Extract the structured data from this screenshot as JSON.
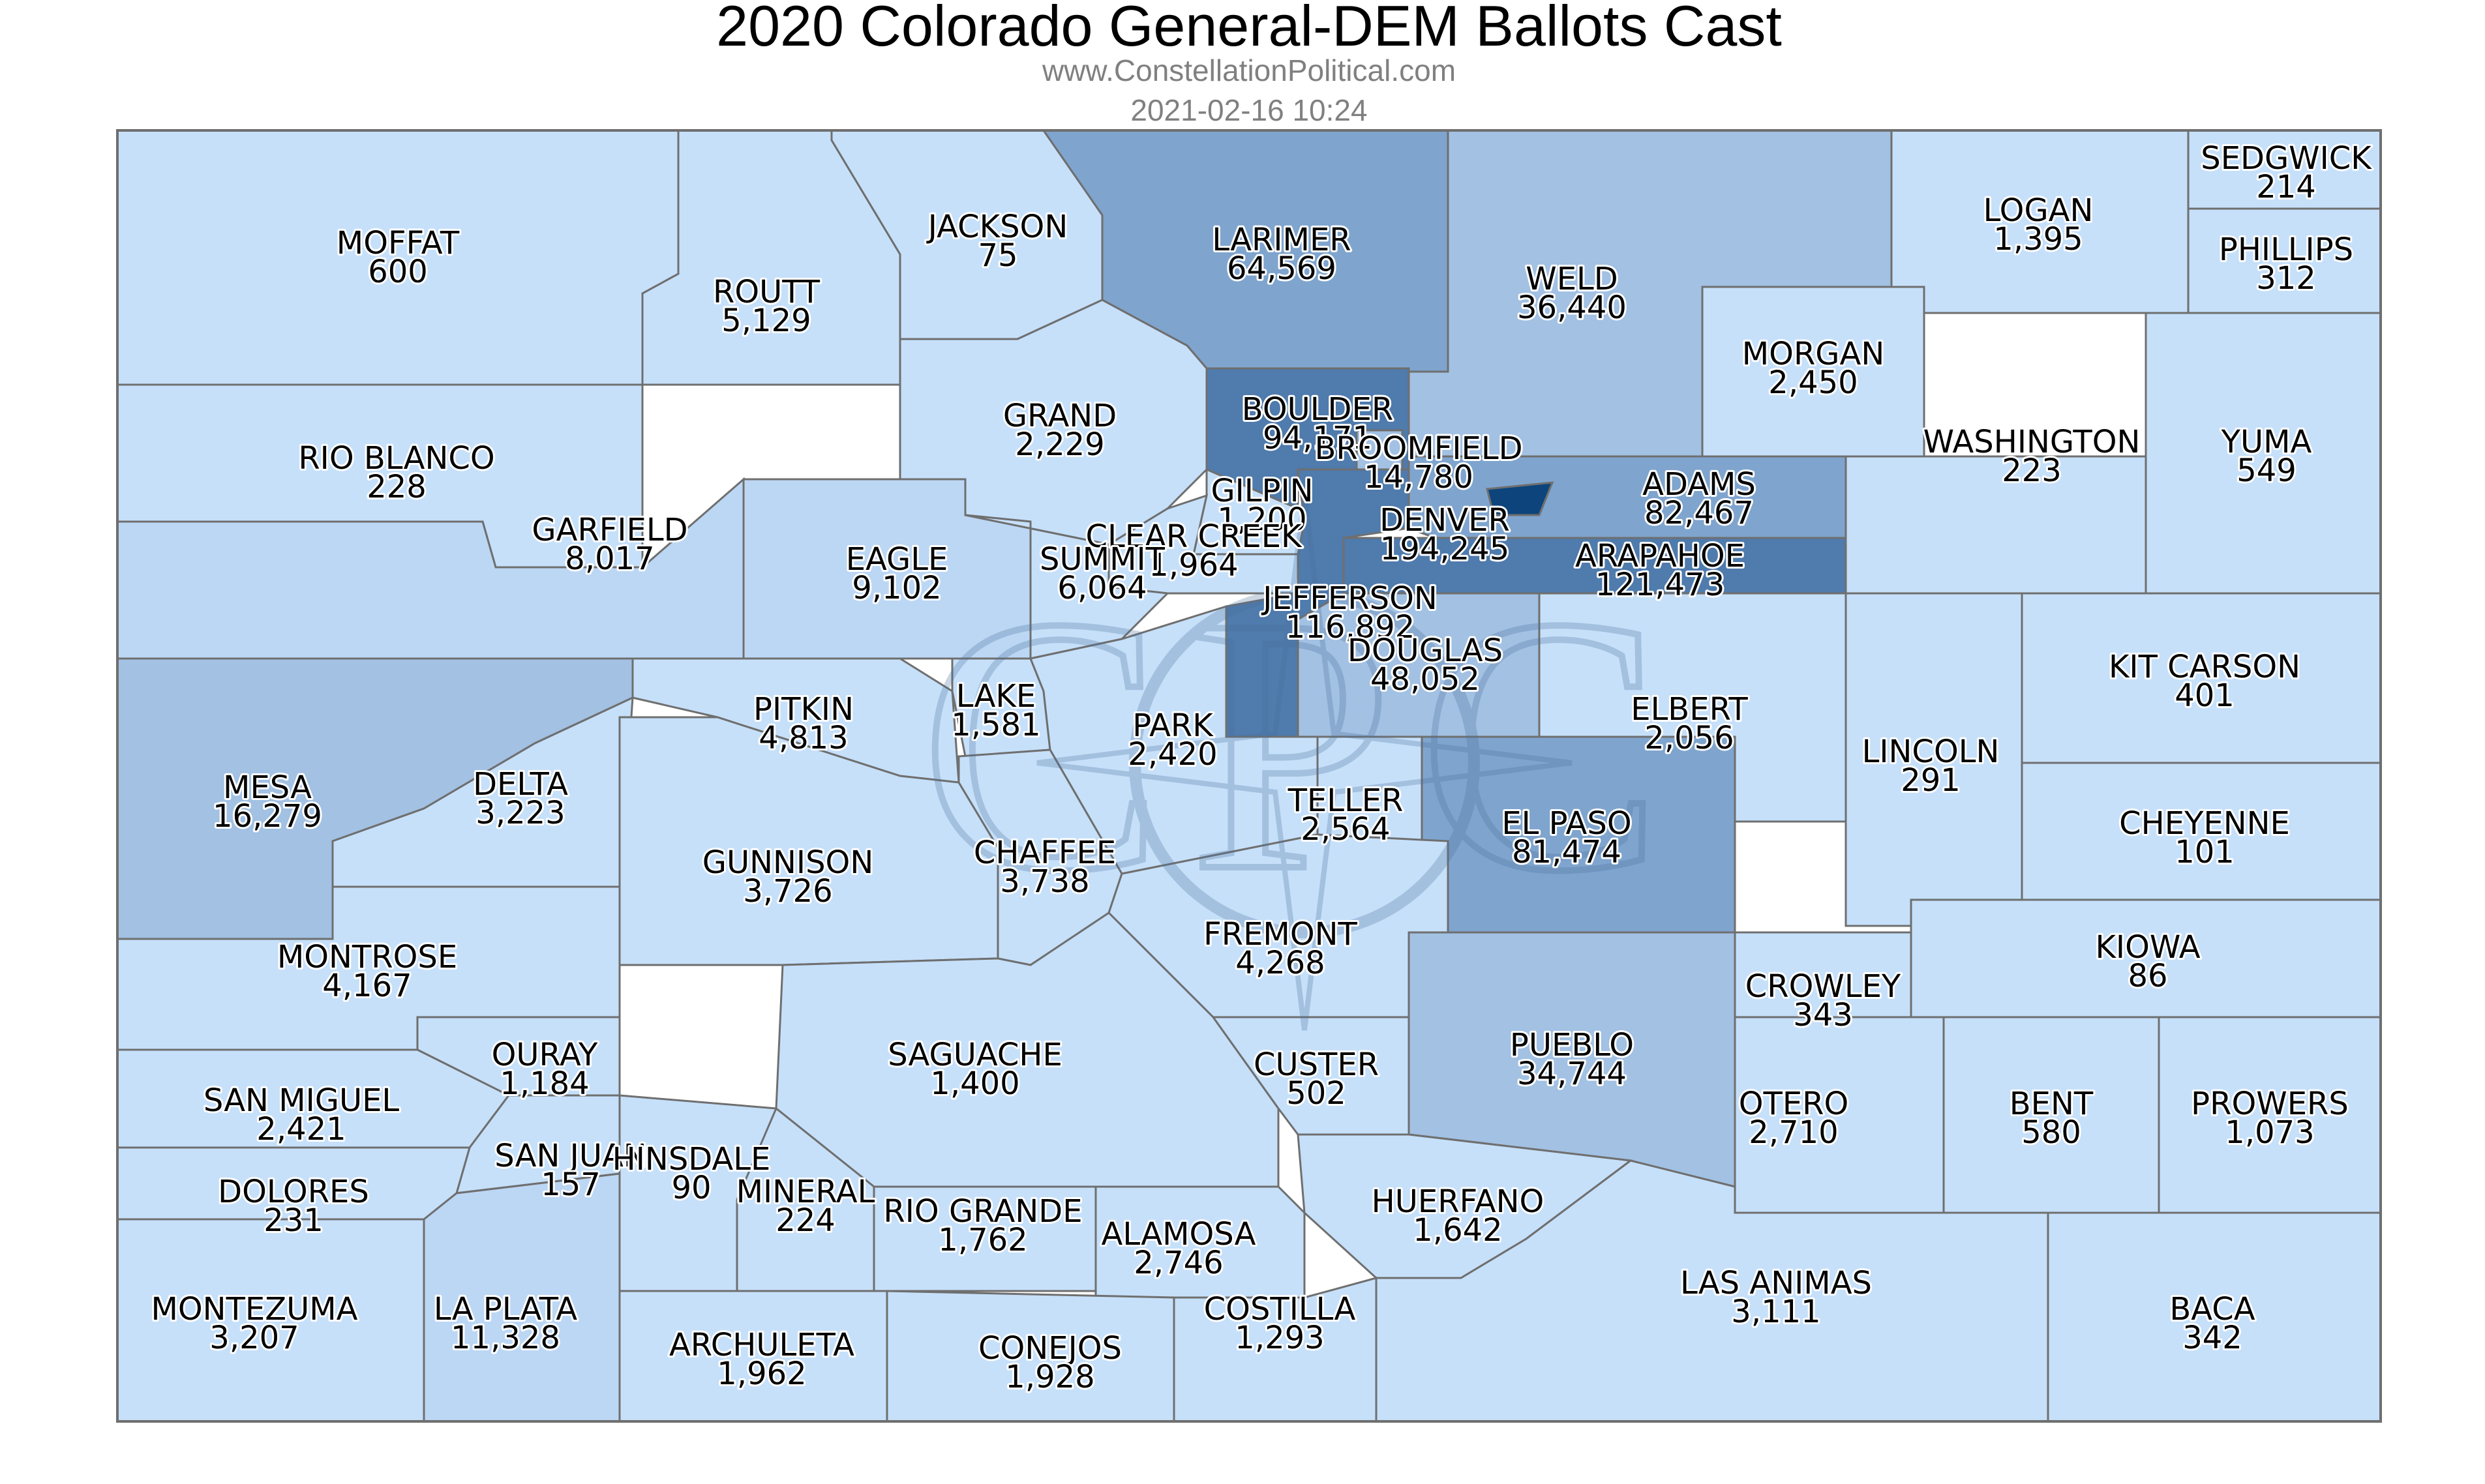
{
  "title": "2020 Colorado General-DEM Ballots Cast",
  "subtitle": "www.ConstellationPolitical.com",
  "timestamp": "2021-02-16 10:24",
  "colors": {
    "tier1": "#c6e0fa",
    "tier2": "#bcd7f4",
    "tier3": "#a2c1e3",
    "tier4": "#7fa5ce",
    "tier5": "#4f7bad",
    "tier6": "#0d447c",
    "border": "#6f6f6f"
  },
  "watermark_letters": "CPC",
  "counties": [
    {
      "name": "MOFFAT",
      "value": "600",
      "tier": 1
    },
    {
      "name": "ROUTT",
      "value": "5,129",
      "tier": 1
    },
    {
      "name": "JACKSON",
      "value": "75",
      "tier": 1
    },
    {
      "name": "LARIMER",
      "value": "64,569",
      "tier": 4
    },
    {
      "name": "WELD",
      "value": "36,440",
      "tier": 3
    },
    {
      "name": "LOGAN",
      "value": "1,395",
      "tier": 1
    },
    {
      "name": "SEDGWICK",
      "value": "214",
      "tier": 1
    },
    {
      "name": "PHILLIPS",
      "value": "312",
      "tier": 1
    },
    {
      "name": "MORGAN",
      "value": "2,450",
      "tier": 1
    },
    {
      "name": "RIO BLANCO",
      "value": "228",
      "tier": 1
    },
    {
      "name": "GARFIELD",
      "value": "8,017",
      "tier": 2
    },
    {
      "name": "GRAND",
      "value": "2,229",
      "tier": 1
    },
    {
      "name": "BOULDER",
      "value": "94,171",
      "tier": 5
    },
    {
      "name": "BROOMFIELD",
      "value": "14,780",
      "tier": 3
    },
    {
      "name": "WASHINGTON",
      "value": "223",
      "tier": 1
    },
    {
      "name": "YUMA",
      "value": "549",
      "tier": 1
    },
    {
      "name": "GILPIN",
      "value": "1,200",
      "tier": 1
    },
    {
      "name": "CLEAR CREEK",
      "value": "1,964",
      "tier": 1
    },
    {
      "name": "ADAMS",
      "value": "82,467",
      "tier": 4
    },
    {
      "name": "DENVER",
      "value": "194,245",
      "tier": 6
    },
    {
      "name": "ARAPAHOE",
      "value": "121,473",
      "tier": 5
    },
    {
      "name": "EAGLE",
      "value": "9,102",
      "tier": 2
    },
    {
      "name": "SUMMIT",
      "value": "6,064",
      "tier": 1
    },
    {
      "name": "JEFFERSON",
      "value": "116,892",
      "tier": 5
    },
    {
      "name": "DOUGLAS",
      "value": "48,052",
      "tier": 3
    },
    {
      "name": "KIT CARSON",
      "value": "401",
      "tier": 1
    },
    {
      "name": "PITKIN",
      "value": "4,813",
      "tier": 1
    },
    {
      "name": "LAKE",
      "value": "1,581",
      "tier": 1
    },
    {
      "name": "PARK",
      "value": "2,420",
      "tier": 1
    },
    {
      "name": "ELBERT",
      "value": "2,056",
      "tier": 1
    },
    {
      "name": "LINCOLN",
      "value": "291",
      "tier": 1
    },
    {
      "name": "MESA",
      "value": "16,279",
      "tier": 3
    },
    {
      "name": "DELTA",
      "value": "3,223",
      "tier": 1
    },
    {
      "name": "CHEYENNE",
      "value": "101",
      "tier": 1
    },
    {
      "name": "TELLER",
      "value": "2,564",
      "tier": 1
    },
    {
      "name": "EL PASO",
      "value": "81,474",
      "tier": 4
    },
    {
      "name": "GUNNISON",
      "value": "3,726",
      "tier": 1
    },
    {
      "name": "CHAFFEE",
      "value": "3,738",
      "tier": 1
    },
    {
      "name": "MONTROSE",
      "value": "4,167",
      "tier": 1
    },
    {
      "name": "FREMONT",
      "value": "4,268",
      "tier": 1
    },
    {
      "name": "KIOWA",
      "value": "86",
      "tier": 1
    },
    {
      "name": "CROWLEY",
      "value": "343",
      "tier": 1
    },
    {
      "name": "OURAY",
      "value": "1,184",
      "tier": 1
    },
    {
      "name": "SAGUACHE",
      "value": "1,400",
      "tier": 1
    },
    {
      "name": "CUSTER",
      "value": "502",
      "tier": 1
    },
    {
      "name": "PUEBLO",
      "value": "34,744",
      "tier": 3
    },
    {
      "name": "SAN MIGUEL",
      "value": "2,421",
      "tier": 1
    },
    {
      "name": "OTERO",
      "value": "2,710",
      "tier": 1
    },
    {
      "name": "BENT",
      "value": "580",
      "tier": 1
    },
    {
      "name": "PROWERS",
      "value": "1,073",
      "tier": 1
    },
    {
      "name": "SAN JUAN",
      "value": "157",
      "tier": 1
    },
    {
      "name": "HINSDALE",
      "value": "90",
      "tier": 1
    },
    {
      "name": "DOLORES",
      "value": "231",
      "tier": 1
    },
    {
      "name": "MINERAL",
      "value": "224",
      "tier": 1
    },
    {
      "name": "RIO GRANDE",
      "value": "1,762",
      "tier": 1
    },
    {
      "name": "HUERFANO",
      "value": "1,642",
      "tier": 1
    },
    {
      "name": "ALAMOSA",
      "value": "2,746",
      "tier": 1
    },
    {
      "name": "LAS ANIMAS",
      "value": "3,111",
      "tier": 1
    },
    {
      "name": "COSTILLA",
      "value": "1,293",
      "tier": 1
    },
    {
      "name": "MONTEZUMA",
      "value": "3,207",
      "tier": 1
    },
    {
      "name": "LA PLATA",
      "value": "11,328",
      "tier": 2
    },
    {
      "name": "ARCHULETA",
      "value": "1,962",
      "tier": 1
    },
    {
      "name": "CONEJOS",
      "value": "1,928",
      "tier": 1
    },
    {
      "name": "BACA",
      "value": "342",
      "tier": 1
    }
  ]
}
